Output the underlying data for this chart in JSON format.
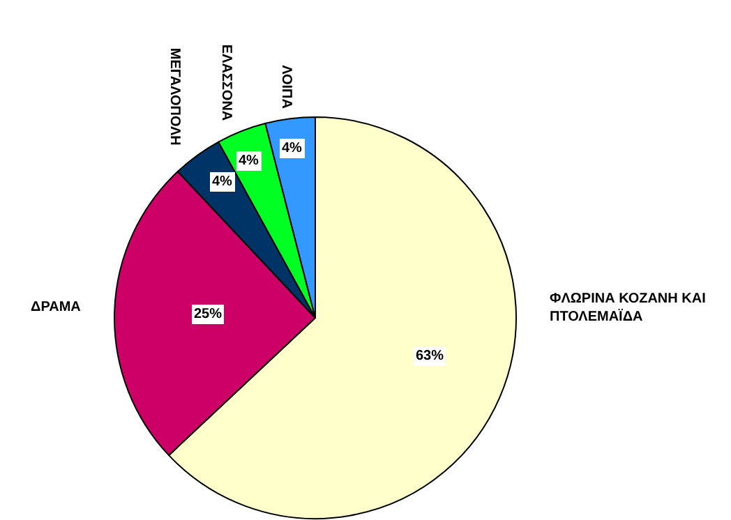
{
  "chart_data": {
    "type": "pie",
    "categories": [
      "ΦΛΩΡΙΝΑ ΚΟΖΑΝΗ ΚΑΙ ΠΤΟΛΕΜΑΪΔΑ",
      "ΔΡΑΜΑ",
      "ΜΕΓΑΛΟΠΟΛΗ",
      "ΕΛΑΣΣΟΝΑ",
      "ΛΟΙΠΑ"
    ],
    "values": [
      63,
      25,
      4,
      4,
      4
    ],
    "value_labels": [
      "63%",
      "25%",
      "4%",
      "4%",
      "4%"
    ],
    "colors": [
      "#ffffcc",
      "#cc0066",
      "#003366",
      "#00ff22",
      "#3399ff"
    ],
    "legend": false
  }
}
